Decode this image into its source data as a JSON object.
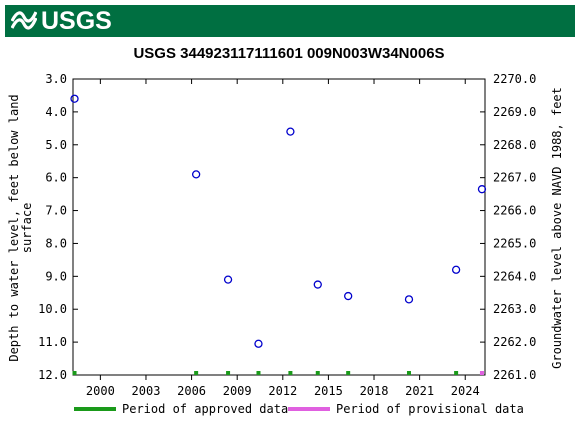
{
  "banner": {
    "logo_text": "USGS",
    "color": "#006f41"
  },
  "chart_data": {
    "type": "scatter",
    "title": "USGS 344923117111601 009N003W34N006S",
    "ylabel_left_lines": [
      "Depth to water level, feet below land",
      "surface"
    ],
    "ylabel_right": "Groundwater level above NAVD 1988, feet",
    "xlabel": "",
    "x_ticks": [
      "2000",
      "2003",
      "2006",
      "2009",
      "2012",
      "2015",
      "2018",
      "2021",
      "2024"
    ],
    "x_tick_years": [
      2000,
      2003,
      2006,
      2009,
      2012,
      2015,
      2018,
      2021,
      2024
    ],
    "x_range": [
      1998.2,
      2025.3
    ],
    "y_left_ticks": [
      "3.0",
      "4.0",
      "5.0",
      "6.0",
      "7.0",
      "8.0",
      "9.0",
      "10.0",
      "11.0",
      "12.0"
    ],
    "y_left_range": [
      3.0,
      12.0
    ],
    "y_left_inverted": true,
    "y_right_ticks": [
      "2270.0",
      "2269.0",
      "2268.0",
      "2267.0",
      "2266.0",
      "2265.0",
      "2264.0",
      "2263.0",
      "2262.0",
      "2261.0"
    ],
    "y_right_range": [
      2261.0,
      2270.0
    ],
    "series": [
      {
        "marker": "circle-open",
        "color": "#0000cc",
        "x": [
          1998.3,
          2006.3,
          2008.4,
          2010.4,
          2012.5,
          2014.3,
          2016.3,
          2020.3,
          2023.4,
          2025.1
        ],
        "y": [
          3.6,
          5.9,
          9.1,
          11.05,
          4.6,
          9.25,
          9.6,
          9.7,
          8.8,
          6.35
        ]
      }
    ],
    "approved_marks_x": [
      1998.3,
      2006.3,
      2008.4,
      2010.4,
      2012.5,
      2014.3,
      2016.3,
      2020.3,
      2023.4
    ],
    "provisional_marks_x": [
      2025.1
    ],
    "legend": [
      {
        "label": "Period of approved data",
        "color": "#1a9a1a"
      },
      {
        "label": "Period of provisional data",
        "color": "#e060e0"
      }
    ],
    "legend_position": "bottom",
    "grid": false
  }
}
